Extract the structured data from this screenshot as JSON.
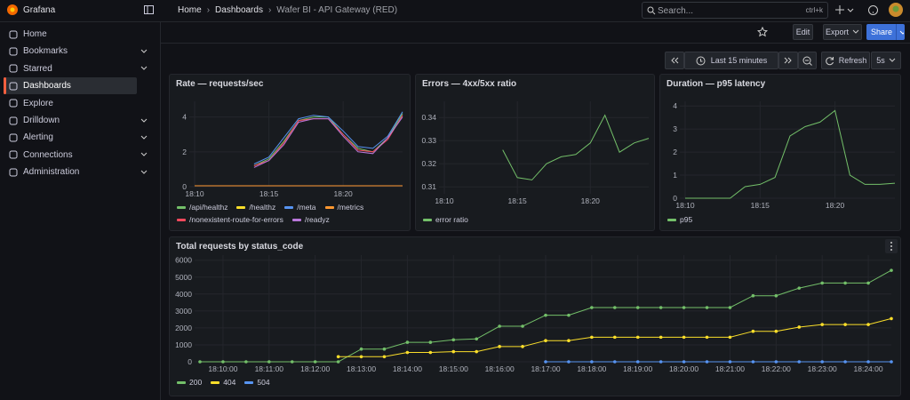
{
  "sidebar": {
    "brand": "Grafana",
    "nav": [
      {
        "label": "Home",
        "expandable": false
      },
      {
        "label": "Bookmarks",
        "expandable": true
      },
      {
        "label": "Starred",
        "expandable": true
      },
      {
        "label": "Dashboards",
        "expandable": false,
        "active": true
      },
      {
        "label": "Explore",
        "expandable": false
      },
      {
        "label": "Drilldown",
        "expandable": true
      },
      {
        "label": "Alerting",
        "expandable": true
      },
      {
        "label": "Connections",
        "expandable": true
      },
      {
        "label": "Administration",
        "expandable": true
      }
    ]
  },
  "topbar": {
    "breadcrumbs": [
      "Home",
      "Dashboards",
      "Wafer BI - API Gateway (RED)"
    ],
    "search_placeholder": "Search...",
    "shortcut": "ctrl+k"
  },
  "toolbar": {
    "edit": "Edit",
    "export": "Export",
    "share": "Share"
  },
  "time_controls": {
    "range": "Last 15 minutes",
    "refresh": "Refresh",
    "interval": "5s"
  },
  "panels": [
    {
      "title": "Rate — requests/sec",
      "type": "line",
      "categories": [
        "18:10",
        null,
        null,
        null,
        null,
        "18:15",
        null,
        null,
        null,
        null,
        "18:20",
        null,
        null,
        null,
        null
      ],
      "ylim": [
        0,
        4.9
      ],
      "yticks": [
        0,
        2,
        4
      ],
      "series": [
        {
          "name": "/api/healthz",
          "color": "#73bf69",
          "values": [
            null,
            null,
            null,
            null,
            1.2,
            1.6,
            2.6,
            3.8,
            4.0,
            4.0,
            3.0,
            2.2,
            2.0,
            2.8,
            4.2
          ]
        },
        {
          "name": "/healthz",
          "color": "#fade2a",
          "values": [
            0.05,
            0.05,
            0.05,
            0.05,
            0.05,
            0.05,
            0.05,
            0.05,
            0.05,
            0.05,
            0.05,
            0.05,
            0.05,
            0.05,
            0.05
          ]
        },
        {
          "name": "/meta",
          "color": "#5794f2",
          "values": [
            null,
            null,
            null,
            null,
            1.3,
            1.7,
            2.8,
            3.9,
            4.1,
            4.0,
            3.2,
            2.3,
            2.2,
            2.9,
            4.3
          ]
        },
        {
          "name": "/metrics",
          "color": "#ff9830",
          "values": [
            0.05,
            0.05,
            0.05,
            0.05,
            0.05,
            0.05,
            0.05,
            0.05,
            0.05,
            0.05,
            0.05,
            0.05,
            0.05,
            0.05,
            0.05
          ]
        },
        {
          "name": "/nonexistent-route-for-errors",
          "color": "#f2495c",
          "values": [
            null,
            null,
            null,
            null,
            1.2,
            1.5,
            2.5,
            3.8,
            3.9,
            3.9,
            3.0,
            2.1,
            2.0,
            2.7,
            4.1
          ]
        },
        {
          "name": "/readyz",
          "color": "#b877d9",
          "values": [
            null,
            null,
            null,
            null,
            1.1,
            1.5,
            2.4,
            3.7,
            3.9,
            3.9,
            2.9,
            2.0,
            1.9,
            2.8,
            4.0
          ]
        }
      ]
    },
    {
      "title": "Errors — 4xx/5xx ratio",
      "type": "line",
      "categories": [
        "18:10",
        null,
        null,
        null,
        null,
        "18:15",
        null,
        null,
        null,
        null,
        "18:20",
        null,
        null,
        null,
        null
      ],
      "ylim": [
        0.307,
        0.347
      ],
      "yticks": [
        0.31,
        0.32,
        0.33,
        0.34
      ],
      "series": [
        {
          "name": "error ratio",
          "color": "#73bf69",
          "values": [
            null,
            null,
            null,
            null,
            0.326,
            0.314,
            0.313,
            0.32,
            0.323,
            0.324,
            0.329,
            0.341,
            0.325,
            0.329,
            0.331
          ]
        }
      ]
    },
    {
      "title": "Duration — p95 latency",
      "type": "line",
      "categories": [
        "18:10",
        null,
        null,
        null,
        null,
        "18:15",
        null,
        null,
        null,
        null,
        "18:20",
        null,
        null,
        null,
        null
      ],
      "ylim": [
        0,
        4.2
      ],
      "yticks": [
        0,
        1,
        2,
        3,
        4
      ],
      "series": [
        {
          "name": "p95",
          "color": "#73bf69",
          "values": [
            0,
            0,
            0,
            0,
            0.5,
            0.6,
            0.9,
            2.7,
            3.1,
            3.3,
            3.8,
            1.0,
            0.6,
            0.6,
            0.65
          ]
        }
      ]
    },
    {
      "title": "Total requests by status_code",
      "type": "line",
      "points": true,
      "categories": [
        null,
        "18:10:00",
        null,
        "18:11:00",
        null,
        "18:12:00",
        null,
        "18:13:00",
        null,
        "18:14:00",
        null,
        "18:15:00",
        null,
        "18:16:00",
        null,
        "18:17:00",
        null,
        "18:18:00",
        null,
        "18:19:00",
        null,
        "18:20:00",
        null,
        "18:21:00",
        null,
        "18:22:00",
        null,
        "18:23:00",
        null,
        "18:24:00",
        null
      ],
      "ylim": [
        0,
        6300
      ],
      "yticks": [
        0,
        1000,
        2000,
        3000,
        4000,
        5000,
        6000
      ],
      "series": [
        {
          "name": "200",
          "color": "#73bf69",
          "values": [
            0,
            0,
            0,
            0,
            0,
            0,
            0,
            750,
            750,
            1150,
            1150,
            1300,
            1350,
            2100,
            2100,
            2750,
            2750,
            3200,
            3200,
            3200,
            3200,
            3200,
            3200,
            3200,
            3900,
            3900,
            4350,
            4650,
            4650,
            4650,
            5400
          ]
        },
        {
          "name": "404",
          "color": "#fade2a",
          "values": [
            null,
            null,
            null,
            null,
            null,
            null,
            300,
            300,
            300,
            550,
            550,
            600,
            600,
            900,
            900,
            1250,
            1250,
            1450,
            1450,
            1450,
            1450,
            1450,
            1450,
            1450,
            1800,
            1800,
            2050,
            2200,
            2200,
            2200,
            2550
          ]
        },
        {
          "name": "504",
          "color": "#5794f2",
          "values": [
            null,
            null,
            null,
            null,
            null,
            null,
            null,
            null,
            null,
            null,
            null,
            null,
            null,
            null,
            null,
            0,
            0,
            0,
            0,
            0,
            0,
            0,
            0,
            0,
            0,
            0,
            0,
            0,
            0,
            0,
            0
          ]
        }
      ]
    }
  ]
}
